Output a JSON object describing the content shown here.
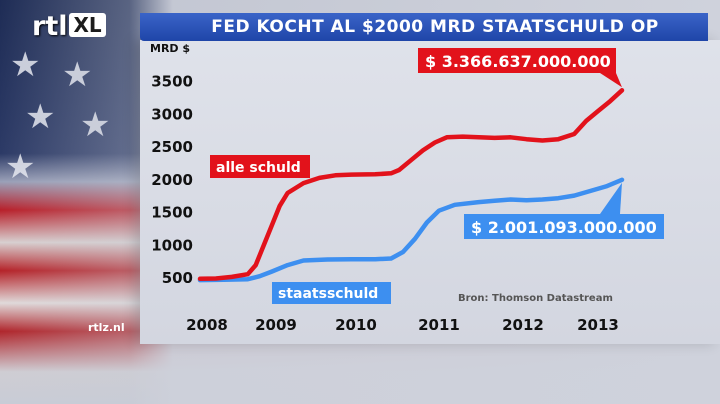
{
  "header": {
    "logo_text": "rtl",
    "logo_xl": "XL",
    "title": "FED KOCHT AL $2000 MRD STAATSCHULD OP"
  },
  "footer": {
    "site": "rtlz.nl"
  },
  "colors": {
    "total_line": "#e2121b",
    "treasury_line": "#3d8ff0",
    "title_bar": "#2451b5"
  },
  "chart_data": {
    "type": "line",
    "title": "FED KOCHT AL $2000 MRD STAATSCHULD OP",
    "ylabel": "MRD $",
    "xlabel": "",
    "ylim": [
      350,
      3600
    ],
    "xlim": [
      2008.0,
      2013.3
    ],
    "yticks": [
      "500",
      "1000",
      "1500",
      "2000",
      "2500",
      "3000",
      "3500"
    ],
    "xticks": [
      "2008",
      "2009",
      "2010",
      "2011",
      "2012",
      "2013"
    ],
    "grid": false,
    "source": "Bron: Thomson Datastream",
    "series": [
      {
        "name": "alle schuld",
        "end_label": "$ 3.366.637.000.000",
        "points": [
          [
            2008.0,
            490
          ],
          [
            2008.2,
            495
          ],
          [
            2008.4,
            520
          ],
          [
            2008.6,
            560
          ],
          [
            2008.7,
            700
          ],
          [
            2008.8,
            1000
          ],
          [
            2008.9,
            1300
          ],
          [
            2009.0,
            1600
          ],
          [
            2009.1,
            1800
          ],
          [
            2009.3,
            1950
          ],
          [
            2009.5,
            2030
          ],
          [
            2009.7,
            2070
          ],
          [
            2009.9,
            2080
          ],
          [
            2010.2,
            2085
          ],
          [
            2010.4,
            2100
          ],
          [
            2010.5,
            2150
          ],
          [
            2010.65,
            2300
          ],
          [
            2010.8,
            2450
          ],
          [
            2010.95,
            2570
          ],
          [
            2011.1,
            2650
          ],
          [
            2011.3,
            2660
          ],
          [
            2011.5,
            2650
          ],
          [
            2011.7,
            2640
          ],
          [
            2011.9,
            2650
          ],
          [
            2012.1,
            2620
          ],
          [
            2012.3,
            2600
          ],
          [
            2012.5,
            2620
          ],
          [
            2012.7,
            2700
          ],
          [
            2012.85,
            2900
          ],
          [
            2013.0,
            3050
          ],
          [
            2013.15,
            3200
          ],
          [
            2013.3,
            3366.637
          ]
        ]
      },
      {
        "name": "staatsschuld",
        "end_label": "$ 2.001.093.000.000",
        "points": [
          [
            2008.0,
            470
          ],
          [
            2008.3,
            475
          ],
          [
            2008.6,
            485
          ],
          [
            2008.75,
            530
          ],
          [
            2008.9,
            600
          ],
          [
            2009.1,
            700
          ],
          [
            2009.3,
            770
          ],
          [
            2009.6,
            785
          ],
          [
            2009.9,
            790
          ],
          [
            2010.2,
            790
          ],
          [
            2010.4,
            800
          ],
          [
            2010.55,
            900
          ],
          [
            2010.7,
            1100
          ],
          [
            2010.85,
            1350
          ],
          [
            2011.0,
            1530
          ],
          [
            2011.2,
            1620
          ],
          [
            2011.5,
            1660
          ],
          [
            2011.7,
            1680
          ],
          [
            2011.9,
            1700
          ],
          [
            2012.1,
            1690
          ],
          [
            2012.3,
            1700
          ],
          [
            2012.5,
            1720
          ],
          [
            2012.7,
            1760
          ],
          [
            2012.9,
            1830
          ],
          [
            2013.1,
            1900
          ],
          [
            2013.3,
            2001.093
          ]
        ]
      }
    ]
  }
}
